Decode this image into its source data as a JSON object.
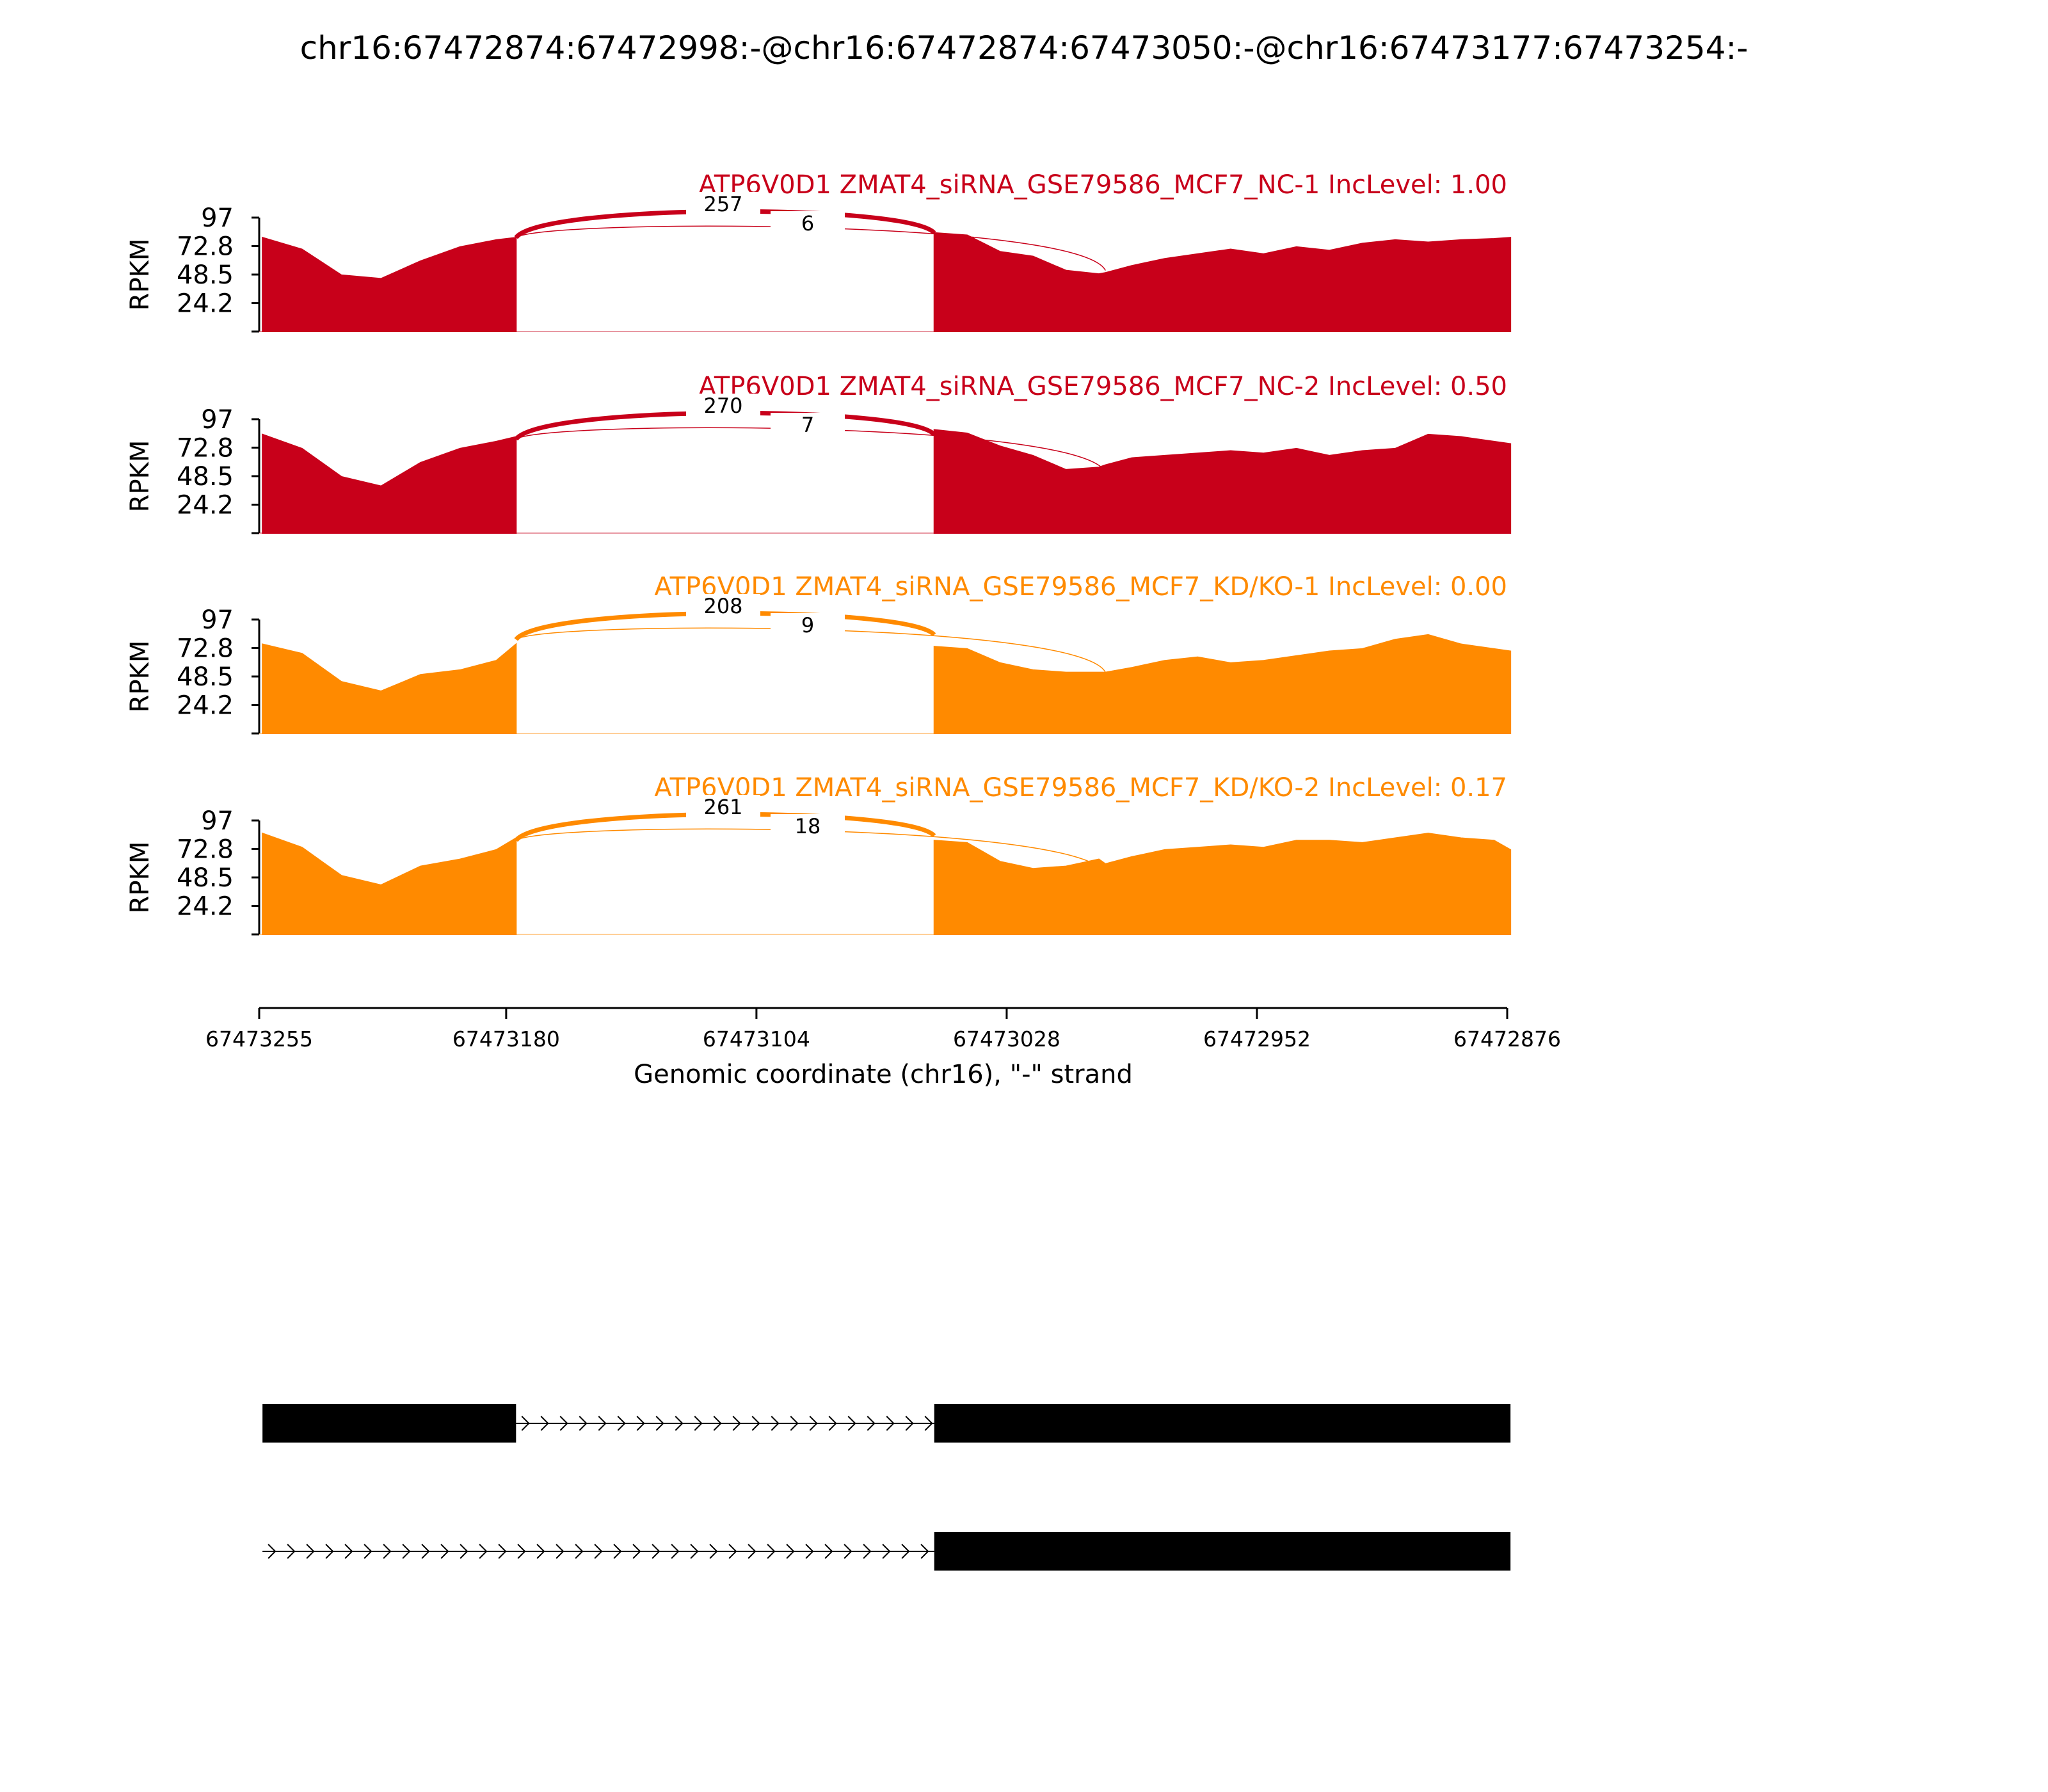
{
  "title": "chr16:67472874:67472998:-@chr16:67472874:67473050:-@chr16:67473177:67473254:-",
  "colors": {
    "group1": "#c8001a",
    "group2": "#ff8a00",
    "axis": "#000000",
    "gene_model": "#000000"
  },
  "chart_data": {
    "type": "area",
    "chart_kind": "sashimi",
    "ylabel": "RPKM",
    "yticks": [
      24.2,
      48.5,
      72.8,
      97
    ],
    "ylim": [
      0,
      97
    ],
    "xlabel": "Genomic coordinate (chr16), \"-\" strand",
    "xlim": [
      67473255,
      67472876
    ],
    "x_reversed": true,
    "xtick_values": [
      67473255,
      67473180,
      67473104,
      67473028,
      67472952,
      67472876
    ],
    "xtick_labels": [
      "67473255",
      "67473180",
      "67473104",
      "67473028",
      "67472952",
      "67472876"
    ],
    "coverage_x": [
      67473254,
      67473242,
      67473230,
      67473218,
      67473206,
      67473194,
      67473183,
      67473177,
      67473050,
      67473040,
      67473030,
      67473020,
      67473010,
      67473000,
      67472998,
      67472990,
      67472980,
      67472970,
      67472960,
      67472950,
      67472940,
      67472930,
      67472920,
      67472910,
      67472900,
      67472890,
      67472880,
      67472875
    ],
    "tracks": [
      {
        "label": "ATP6V0D1 ZMAT4_siRNA_GSE79586_MCF7_NC-1 IncLevel: 1.00",
        "color_key": "group1",
        "coverage_y": [
          80,
          70,
          48,
          45,
          60,
          72,
          78,
          80,
          84,
          82,
          68,
          64,
          52,
          49,
          50,
          56,
          62,
          66,
          70,
          66,
          72,
          69,
          75,
          78,
          76,
          78,
          79,
          80
        ],
        "junctions": [
          {
            "from": 67473177,
            "to": 67473050,
            "count": "257"
          },
          {
            "from": 67473177,
            "to": 67472998,
            "count": "6"
          }
        ]
      },
      {
        "label": "ATP6V0D1 ZMAT4_siRNA_GSE79586_MCF7_NC-2 IncLevel: 0.50",
        "color_key": "group1",
        "coverage_y": [
          84,
          72,
          48,
          40,
          60,
          72,
          78,
          82,
          88,
          85,
          74,
          66,
          54,
          56,
          58,
          64,
          66,
          68,
          70,
          68,
          72,
          66,
          70,
          72,
          84,
          82,
          78,
          76
        ],
        "junctions": [
          {
            "from": 67473177,
            "to": 67473050,
            "count": "270"
          },
          {
            "from": 67473177,
            "to": 67472998,
            "count": "7"
          }
        ]
      },
      {
        "label": "ATP6V0D1 ZMAT4_siRNA_GSE79586_MCF7_KD/KO-1 IncLevel: 0.00",
        "color_key": "group2",
        "coverage_y": [
          76,
          68,
          44,
          36,
          50,
          54,
          62,
          76,
          74,
          72,
          60,
          54,
          52,
          52,
          52,
          56,
          62,
          65,
          60,
          62,
          66,
          70,
          72,
          80,
          84,
          76,
          72,
          70
        ],
        "junctions": [
          {
            "from": 67473177,
            "to": 67473050,
            "count": "208"
          },
          {
            "from": 67473177,
            "to": 67472998,
            "count": "9"
          }
        ]
      },
      {
        "label": "ATP6V0D1 ZMAT4_siRNA_GSE79586_MCF7_KD/KO-2 IncLevel: 0.17",
        "color_key": "group2",
        "coverage_y": [
          86,
          74,
          50,
          42,
          58,
          64,
          72,
          82,
          80,
          78,
          62,
          56,
          58,
          64,
          60,
          66,
          72,
          74,
          76,
          74,
          80,
          80,
          78,
          82,
          86,
          82,
          80,
          72
        ],
        "junctions": [
          {
            "from": 67473177,
            "to": 67473050,
            "count": "261"
          },
          {
            "from": 67473177,
            "to": 67472998,
            "count": "18"
          }
        ]
      }
    ],
    "gene_models": [
      {
        "exons": [
          [
            67473254,
            67473177
          ],
          [
            67473050,
            67472875
          ]
        ],
        "intron": [
          67473177,
          67473050
        ]
      },
      {
        "exons": [
          [
            67473050,
            67472875
          ]
        ],
        "intron": [
          67473254,
          67473050
        ]
      }
    ]
  }
}
